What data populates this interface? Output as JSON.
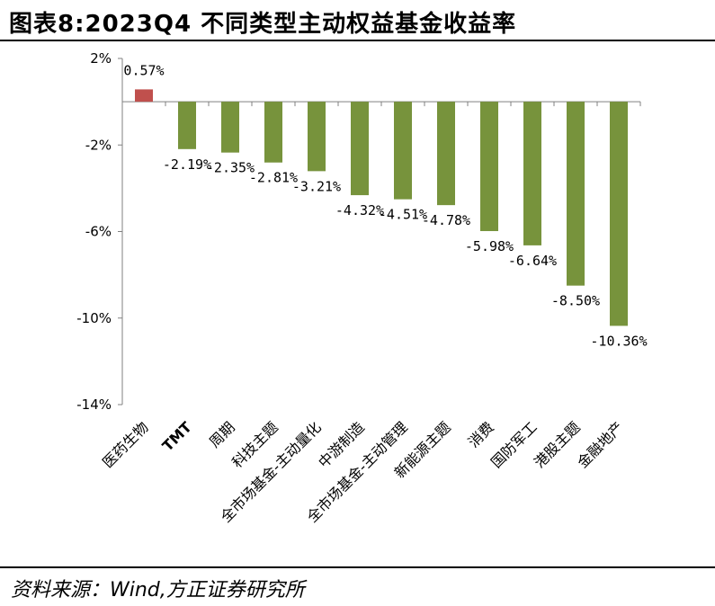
{
  "title": "图表8:2023Q4 不同类型主动权益基金收益率",
  "source": "资料来源：Wind,方正证券研究所",
  "chart_data": {
    "type": "bar",
    "categories": [
      "医药生物",
      "TMT",
      "周期",
      "科技主题",
      "全市场基金-主动量化",
      "中游制造",
      "全市场基金-主动管理",
      "新能源主题",
      "消费",
      "国防军工",
      "港股主题",
      "金融地产"
    ],
    "values": [
      0.57,
      -2.19,
      -2.35,
      -2.81,
      -3.21,
      -4.32,
      -4.51,
      -4.78,
      -5.98,
      -6.64,
      -8.5,
      -10.36
    ],
    "data_labels": [
      "0.57%",
      "-2.19%",
      "-2.35%",
      "-2.81%",
      "-3.21%",
      "-4.32%",
      "-4.51%",
      "-4.78%",
      "-5.98%",
      "-6.64%",
      "-8.50%",
      "-10.36%"
    ],
    "ylim": [
      -14,
      2
    ],
    "yticks": [
      2,
      -2,
      -6,
      -10,
      -14
    ],
    "ytick_labels": [
      "2%",
      "-2%",
      "-6%",
      "-10%",
      "-14%"
    ],
    "colors": {
      "positive": "#c0504d",
      "negative": "#77933c"
    },
    "grid": false,
    "legend": "none"
  }
}
